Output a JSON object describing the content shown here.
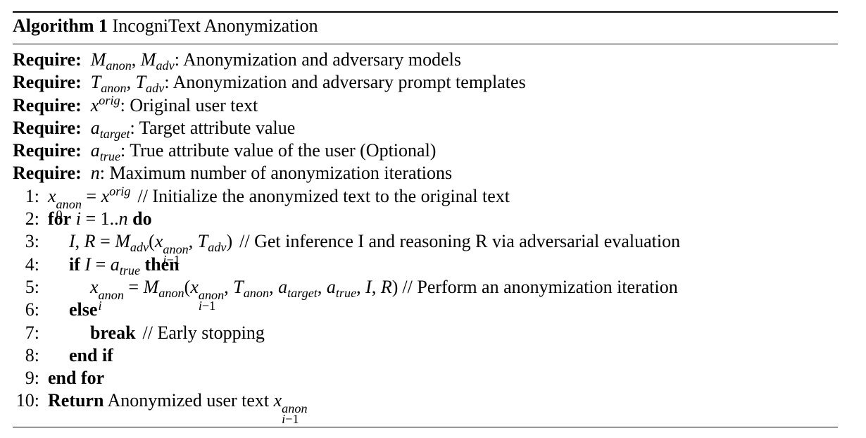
{
  "algorithm": {
    "label": "Algorithm 1",
    "title": "IncogniText Anonymization"
  },
  "requires": [
    {
      "keyword": "Require:",
      "math": "M_anon, M_adv",
      "text": ": Anonymization and adversary models"
    },
    {
      "keyword": "Require:",
      "math": "T_anon, T_adv",
      "text": ": Anonymization and adversary prompt templates"
    },
    {
      "keyword": "Require:",
      "math": "x^orig",
      "text": ": Original user text"
    },
    {
      "keyword": "Require:",
      "math": "a_target",
      "text": ": Target attribute value"
    },
    {
      "keyword": "Require:",
      "math": "a_true",
      "text": ": True attribute value of the user (Optional)"
    },
    {
      "keyword": "Require:",
      "math": "n",
      "text": ": Maximum number of anonymization iterations"
    }
  ],
  "steps": [
    {
      "num": "1:",
      "comment": "// Initialize the anonymized text to the original text"
    },
    {
      "num": "2:",
      "kw_for": "for",
      "kw_do": "do"
    },
    {
      "num": "3:",
      "comment": "// Get inference I and reasoning R via adversarial evaluation"
    },
    {
      "num": "4:",
      "kw_if": "if",
      "kw_then": "then"
    },
    {
      "num": "5:",
      "comment": "// Perform an anonymization iteration"
    },
    {
      "num": "6:",
      "kw": "else"
    },
    {
      "num": "7:",
      "kw": "break",
      "comment": "// Early stopping"
    },
    {
      "num": "8:",
      "kw": "end if"
    },
    {
      "num": "9:",
      "kw": "end for"
    },
    {
      "num": "10:",
      "kw": "Return",
      "text": "Anonymized user text"
    }
  ]
}
